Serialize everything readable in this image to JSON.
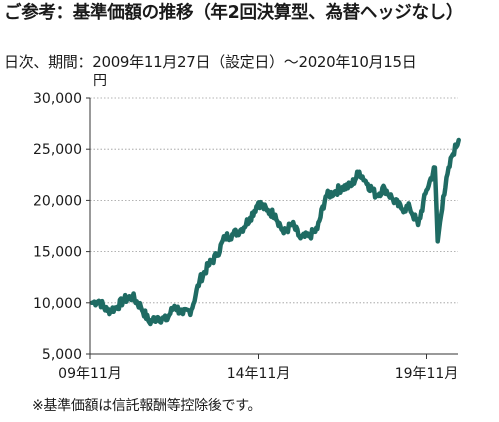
{
  "header": {
    "title": "ご参考：基準価額の推移（年2回決算型、為替ヘッジなし）",
    "period": "日次、期間：2009年11月27日（設定日）〜2020年10月15日",
    "unit": "円"
  },
  "footer": {
    "note": "※基準価額は信託報酬等控除後です。"
  },
  "chart_data": {
    "type": "line",
    "title": "",
    "xlabel": "",
    "ylabel": "円",
    "ylim": [
      5000,
      30000
    ],
    "yticks": [
      "5,000",
      "10,000",
      "15,000",
      "20,000",
      "25,000",
      "30,000"
    ],
    "xticks": [
      "09年11月",
      "14年11月",
      "19年11月"
    ],
    "grid": true,
    "line_color": "#1f6b63",
    "series": [
      {
        "name": "",
        "x": [
          "2009-11",
          "2010-02",
          "2010-05",
          "2010-08",
          "2010-11",
          "2011-02",
          "2011-05",
          "2011-08",
          "2011-11",
          "2012-02",
          "2012-05",
          "2012-08",
          "2012-11",
          "2013-02",
          "2013-05",
          "2013-08",
          "2013-11",
          "2014-02",
          "2014-05",
          "2014-08",
          "2014-11",
          "2015-02",
          "2015-05",
          "2015-08",
          "2015-11",
          "2016-02",
          "2016-05",
          "2016-08",
          "2016-11",
          "2017-02",
          "2017-05",
          "2017-08",
          "2017-11",
          "2018-02",
          "2018-05",
          "2018-08",
          "2018-11",
          "2019-02",
          "2019-05",
          "2019-08",
          "2019-11",
          "2020-02",
          "2020-03",
          "2020-05",
          "2020-08",
          "2020-10"
        ],
        "values": [
          10000,
          10200,
          9200,
          9500,
          10300,
          10600,
          9600,
          8100,
          8600,
          8300,
          9700,
          8900,
          9300,
          12200,
          13600,
          14600,
          16400,
          16700,
          17200,
          18300,
          19800,
          19000,
          18600,
          16800,
          17700,
          16300,
          16500,
          17200,
          20400,
          20800,
          21300,
          21400,
          22800,
          21600,
          20500,
          21200,
          20100,
          19200,
          19300,
          17600,
          21000,
          23200,
          16000,
          20400,
          24300,
          25900
        ]
      }
    ]
  }
}
